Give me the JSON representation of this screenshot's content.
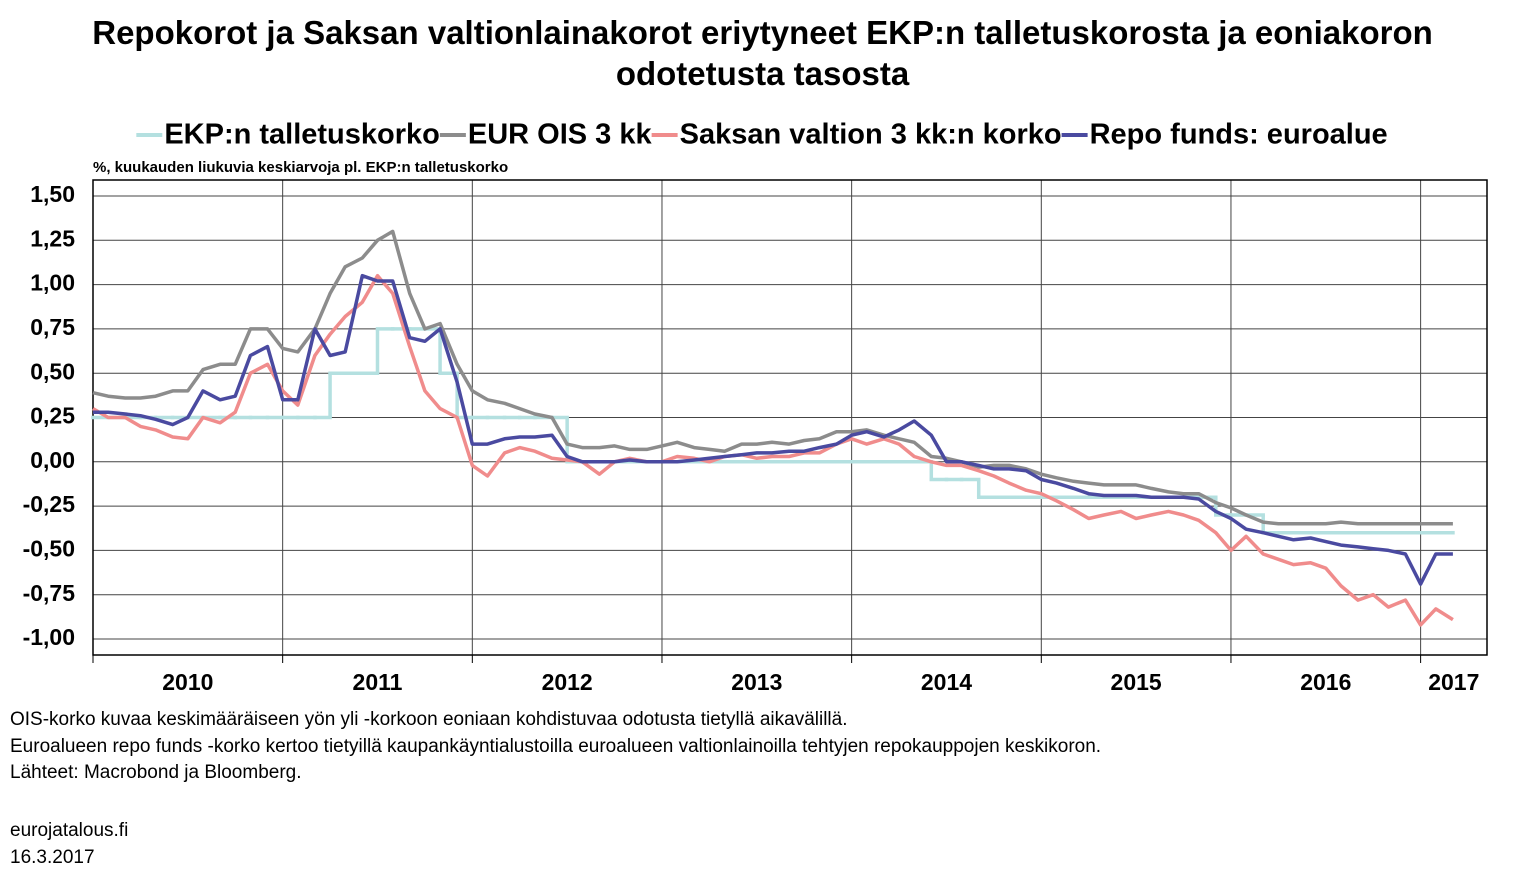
{
  "chart_data": {
    "type": "line",
    "title": "Repokorot ja Saksan valtionlainakorot eriytyneet EKP:n talletuskorosta ja eoniakoron odotetusta tasosta",
    "subtitle": "%, kuukauden liukuvia keskiarvoja pl. EKP:n talletuskorko",
    "notes": [
      "OIS-korko kuvaa keskimääräiseen yön yli -korkoon eoniaan kohdistuvaa odotusta tietyllä aikavälillä.",
      "Euroalueen repo funds -korko kertoo tietyillä kaupankäyntialustoilla euroalueen valtionlainoilla tehtyjen repokauppojen keskikoron.",
      "Lähteet: Macrobond ja Bloomberg."
    ],
    "footer": [
      "eurojatalous.fi",
      "16.3.2017"
    ],
    "grid": true,
    "legend": "top",
    "xlim": [
      2010,
      2017.35
    ],
    "xticks": [
      2010,
      2011,
      2012,
      2013,
      2014,
      2015,
      2016,
      2017
    ],
    "ylim": [
      -1.09,
      1.59
    ],
    "yticks": [
      {
        "value": 1.5,
        "label": "1,50"
      },
      {
        "value": 1.25,
        "label": "1,25"
      },
      {
        "value": 1,
        "label": "1,00"
      },
      {
        "value": 0.75,
        "label": "0,75"
      },
      {
        "value": 0.5,
        "label": "0,50"
      },
      {
        "value": 0.25,
        "label": "0,25"
      },
      {
        "value": 0,
        "label": "0,00"
      },
      {
        "value": -0.25,
        "label": "-0,25"
      },
      {
        "value": -0.5,
        "label": "-0,50"
      },
      {
        "value": -0.75,
        "label": "-0,75"
      },
      {
        "value": -1,
        "label": "-1,00"
      }
    ],
    "x": [
      2010,
      2010.08,
      2010.17,
      2010.25,
      2010.33,
      2010.42,
      2010.5,
      2010.58,
      2010.67,
      2010.75,
      2010.83,
      2010.92,
      2011,
      2011.08,
      2011.17,
      2011.25,
      2011.33,
      2011.42,
      2011.5,
      2011.58,
      2011.67,
      2011.75,
      2011.83,
      2011.92,
      2012,
      2012.08,
      2012.17,
      2012.25,
      2012.33,
      2012.42,
      2012.5,
      2012.58,
      2012.67,
      2012.75,
      2012.83,
      2012.92,
      2013,
      2013.08,
      2013.17,
      2013.25,
      2013.33,
      2013.42,
      2013.5,
      2013.58,
      2013.67,
      2013.75,
      2013.83,
      2013.92,
      2014,
      2014.08,
      2014.17,
      2014.25,
      2014.33,
      2014.42,
      2014.5,
      2014.58,
      2014.67,
      2014.75,
      2014.83,
      2014.92,
      2015,
      2015.08,
      2015.17,
      2015.25,
      2015.33,
      2015.42,
      2015.5,
      2015.58,
      2015.67,
      2015.75,
      2015.83,
      2015.92,
      2016,
      2016.08,
      2016.17,
      2016.25,
      2016.33,
      2016.42,
      2016.5,
      2016.58,
      2016.67,
      2016.75,
      2016.83,
      2016.92,
      2017,
      2017.08,
      2017.17
    ],
    "series": [
      {
        "name": "EKP:n talletuskorko",
        "color": "#b4e0e0",
        "step": true,
        "values": [
          0.25,
          0.25,
          0.25,
          0.25,
          0.25,
          0.25,
          0.25,
          0.25,
          0.25,
          0.25,
          0.25,
          0.25,
          0.25,
          0.25,
          0.25,
          0.5,
          0.5,
          0.5,
          0.75,
          0.75,
          0.75,
          0.75,
          0.5,
          0.25,
          0.25,
          0.25,
          0.25,
          0.25,
          0.25,
          0.25,
          0,
          0,
          0,
          0,
          0,
          0,
          0,
          0,
          0,
          0,
          0,
          0,
          0,
          0,
          0,
          0,
          0,
          0,
          0,
          0,
          0,
          0,
          0,
          -0.1,
          -0.1,
          -0.1,
          -0.2,
          -0.2,
          -0.2,
          -0.2,
          -0.2,
          -0.2,
          -0.2,
          -0.2,
          -0.2,
          -0.2,
          -0.2,
          -0.2,
          -0.2,
          -0.2,
          -0.2,
          -0.3,
          -0.3,
          -0.3,
          -0.4,
          -0.4,
          -0.4,
          -0.4,
          -0.4,
          -0.4,
          -0.4,
          -0.4,
          -0.4,
          -0.4,
          -0.4,
          -0.4,
          -0.4
        ]
      },
      {
        "name": "EUR OIS 3 kk",
        "color": "#8c8c8c",
        "values": [
          0.39,
          0.37,
          0.36,
          0.36,
          0.37,
          0.4,
          0.4,
          0.52,
          0.55,
          0.55,
          0.75,
          0.75,
          0.64,
          0.62,
          0.75,
          0.95,
          1.1,
          1.15,
          1.25,
          1.3,
          0.95,
          0.75,
          0.78,
          0.55,
          0.4,
          0.35,
          0.33,
          0.3,
          0.27,
          0.25,
          0.1,
          0.08,
          0.08,
          0.09,
          0.07,
          0.07,
          0.09,
          0.11,
          0.08,
          0.07,
          0.06,
          0.1,
          0.1,
          0.11,
          0.1,
          0.12,
          0.13,
          0.17,
          0.17,
          0.18,
          0.15,
          0.13,
          0.11,
          0.03,
          0.02,
          0,
          -0.03,
          -0.02,
          -0.02,
          -0.04,
          -0.07,
          -0.09,
          -0.11,
          -0.12,
          -0.13,
          -0.13,
          -0.13,
          -0.15,
          -0.17,
          -0.18,
          -0.18,
          -0.23,
          -0.26,
          -0.3,
          -0.34,
          -0.35,
          -0.35,
          -0.35,
          -0.35,
          -0.34,
          -0.35,
          -0.35,
          -0.35,
          -0.35,
          -0.35,
          -0.35,
          -0.35
        ]
      },
      {
        "name": "Saksan valtion 3 kk:n korko",
        "color": "#f08c8c",
        "values": [
          0.3,
          0.25,
          0.25,
          0.2,
          0.18,
          0.14,
          0.13,
          0.25,
          0.22,
          0.28,
          0.5,
          0.55,
          0.4,
          0.32,
          0.6,
          0.72,
          0.82,
          0.9,
          1.05,
          0.95,
          0.65,
          0.4,
          0.3,
          0.25,
          -0.02,
          -0.08,
          0.05,
          0.08,
          0.06,
          0.02,
          0.01,
          0,
          -0.07,
          0,
          0.02,
          0,
          0,
          0.03,
          0.02,
          0,
          0.03,
          0.04,
          0.02,
          0.03,
          0.03,
          0.05,
          0.05,
          0.1,
          0.13,
          0.1,
          0.13,
          0.1,
          0.03,
          0,
          -0.02,
          -0.02,
          -0.05,
          -0.08,
          -0.12,
          -0.16,
          -0.18,
          -0.22,
          -0.27,
          -0.32,
          -0.3,
          -0.28,
          -0.32,
          -0.3,
          -0.28,
          -0.3,
          -0.33,
          -0.4,
          -0.5,
          -0.42,
          -0.52,
          -0.55,
          -0.58,
          -0.57,
          -0.6,
          -0.7,
          -0.78,
          -0.75,
          -0.82,
          -0.78,
          -0.92,
          -0.83,
          -0.89
        ]
      },
      {
        "name": "Repo funds: euroalue",
        "color": "#4a4aa0",
        "values": [
          0.28,
          0.28,
          0.27,
          0.26,
          0.24,
          0.21,
          0.25,
          0.4,
          0.35,
          0.37,
          0.6,
          0.65,
          0.35,
          0.35,
          0.75,
          0.6,
          0.62,
          1.05,
          1.02,
          1.02,
          0.7,
          0.68,
          0.75,
          0.45,
          0.1,
          0.1,
          0.13,
          0.14,
          0.14,
          0.15,
          0.03,
          0,
          0,
          0,
          0.01,
          0,
          0,
          0,
          0.01,
          0.02,
          0.03,
          0.04,
          0.05,
          0.05,
          0.06,
          0.06,
          0.08,
          0.1,
          0.15,
          0.17,
          0.14,
          0.18,
          0.23,
          0.15,
          0,
          0,
          -0.02,
          -0.04,
          -0.04,
          -0.05,
          -0.1,
          -0.12,
          -0.15,
          -0.18,
          -0.19,
          -0.19,
          -0.19,
          -0.2,
          -0.2,
          -0.2,
          -0.21,
          -0.28,
          -0.32,
          -0.38,
          -0.4,
          -0.42,
          -0.44,
          -0.43,
          -0.45,
          -0.47,
          -0.48,
          -0.49,
          -0.5,
          -0.52,
          -0.69,
          -0.52,
          -0.52
        ]
      }
    ]
  }
}
